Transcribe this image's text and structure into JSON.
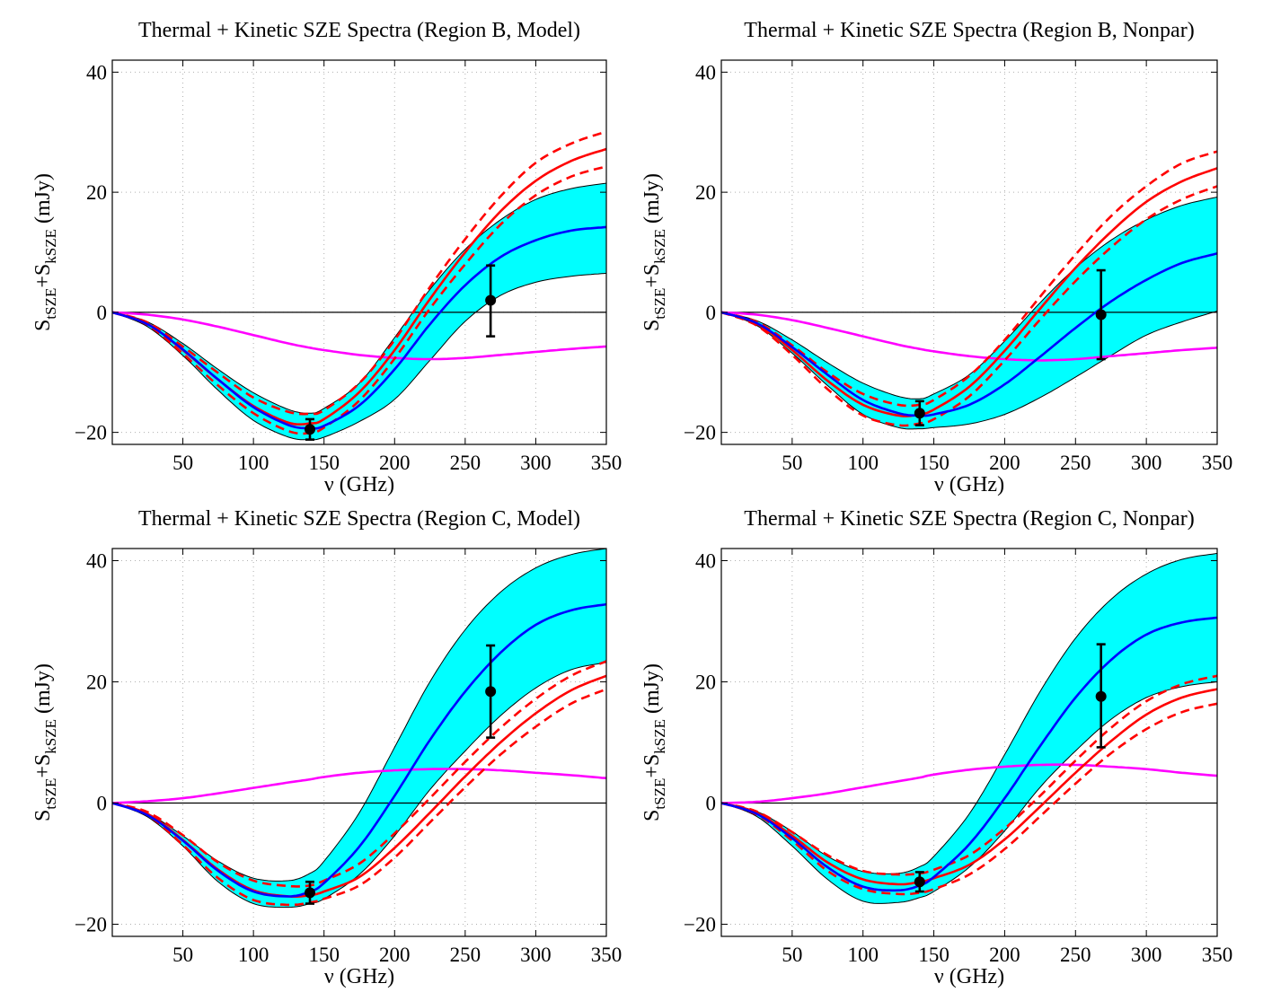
{
  "chart_data": [
    {
      "type": "line",
      "title": "Thermal + Kinetic SZE Spectra (Region B, Model)",
      "xlabel": "ν (GHz)",
      "ylabel": {
        "main": "S",
        "sub1": "tSZE",
        "plus": "+S",
        "sub2": "kSZE",
        "unit": " (mJy)"
      },
      "xlim": [
        0,
        350
      ],
      "ylim": [
        -22,
        42
      ],
      "xticks": [
        50,
        100,
        150,
        200,
        250,
        300,
        350
      ],
      "yticks": [
        -20,
        0,
        20,
        40
      ],
      "grid": true,
      "colors": {
        "band": "#00ffff",
        "total": "#0000ff",
        "thermal": "#ff0000",
        "kinetic": "#ff00ff",
        "points": "#000000"
      },
      "x": [
        0,
        25,
        50,
        75,
        100,
        125,
        140,
        150,
        175,
        200,
        225,
        250,
        275,
        300,
        325,
        350
      ],
      "series": [
        {
          "role": "total",
          "values": [
            0,
            -2.0,
            -6.2,
            -11.2,
            -15.8,
            -18.8,
            -19.3,
            -18.9,
            -15.5,
            -9.5,
            -2.0,
            4.5,
            9.2,
            12.0,
            13.6,
            14.2
          ]
        },
        {
          "role": "band_upper",
          "values": [
            0,
            -1.6,
            -5.2,
            -9.5,
            -13.4,
            -16.2,
            -16.8,
            -16.0,
            -11.8,
            -4.2,
            3.8,
            10.5,
            15.4,
            18.8,
            20.6,
            21.5
          ]
        },
        {
          "role": "band_lower",
          "values": [
            0,
            -2.4,
            -7.2,
            -13.0,
            -18.0,
            -20.8,
            -21.2,
            -20.8,
            -18.2,
            -14.5,
            -8.0,
            -1.5,
            2.8,
            5.0,
            6.0,
            6.5
          ]
        },
        {
          "role": "thermal",
          "values": [
            0,
            -1.9,
            -6.3,
            -11.2,
            -15.6,
            -18.4,
            -18.5,
            -17.8,
            -13.3,
            -6.3,
            2.2,
            10.0,
            16.8,
            21.9,
            25.2,
            27.2
          ]
        },
        {
          "role": "thermal_upper",
          "values": [
            0,
            -1.7,
            -5.7,
            -10.1,
            -14.2,
            -16.6,
            -16.9,
            -16.3,
            -11.8,
            -4.6,
            4.2,
            12.2,
            19.3,
            24.9,
            28.1,
            30.1
          ]
        },
        {
          "role": "thermal_lower",
          "values": [
            0,
            -2.1,
            -6.9,
            -12.2,
            -16.8,
            -19.8,
            -20.1,
            -19.2,
            -14.7,
            -7.7,
            0.6,
            8.0,
            14.6,
            19.5,
            22.6,
            24.3
          ]
        },
        {
          "role": "kinetic",
          "values": [
            0,
            -0.4,
            -1.2,
            -2.4,
            -3.8,
            -5.2,
            -5.9,
            -6.3,
            -7.1,
            -7.6,
            -7.8,
            -7.6,
            -7.1,
            -6.6,
            -6.1,
            -5.7
          ]
        }
      ],
      "points": [
        {
          "x": 140,
          "y": -19.5,
          "lo": -21.2,
          "hi": -17.8
        },
        {
          "x": 268,
          "y": 2.0,
          "lo": -4.0,
          "hi": 7.8
        }
      ]
    },
    {
      "type": "line",
      "title": "Thermal + Kinetic SZE Spectra (Region B, Nonpar)",
      "xlabel": "ν (GHz)",
      "ylabel": {
        "main": "S",
        "sub1": "tSZE",
        "plus": "+S",
        "sub2": "kSZE",
        "unit": " (mJy)"
      },
      "xlim": [
        0,
        350
      ],
      "ylim": [
        -22,
        42
      ],
      "xticks": [
        50,
        100,
        150,
        200,
        250,
        300,
        350
      ],
      "yticks": [
        -20,
        0,
        20,
        40
      ],
      "grid": true,
      "colors": {
        "band": "#00ffff",
        "total": "#0000ff",
        "thermal": "#ff0000",
        "kinetic": "#ff00ff",
        "points": "#000000"
      },
      "x": [
        0,
        25,
        50,
        75,
        100,
        125,
        140,
        150,
        175,
        200,
        225,
        250,
        275,
        300,
        325,
        350
      ],
      "series": [
        {
          "role": "total",
          "values": [
            0,
            -1.8,
            -5.8,
            -10.4,
            -14.6,
            -16.8,
            -17.2,
            -17.0,
            -15.4,
            -12.0,
            -7.4,
            -2.6,
            1.8,
            5.4,
            8.2,
            9.8
          ]
        },
        {
          "role": "band_upper",
          "values": [
            0,
            -1.4,
            -4.6,
            -8.4,
            -11.8,
            -14.0,
            -14.4,
            -13.6,
            -10.4,
            -4.8,
            1.6,
            7.4,
            12.0,
            15.4,
            17.8,
            19.2
          ]
        },
        {
          "role": "band_lower",
          "values": [
            0,
            -2.2,
            -6.8,
            -12.2,
            -17.0,
            -19.2,
            -19.4,
            -19.2,
            -18.6,
            -17.0,
            -14.2,
            -10.8,
            -7.2,
            -3.8,
            -1.6,
            0.2
          ]
        },
        {
          "role": "thermal",
          "values": [
            0,
            -1.9,
            -6.3,
            -11.4,
            -15.4,
            -17.2,
            -17.0,
            -16.2,
            -12.4,
            -6.4,
            0.6,
            7.4,
            13.4,
            18.4,
            21.8,
            24.0
          ]
        },
        {
          "role": "thermal_upper",
          "values": [
            0,
            -1.6,
            -5.5,
            -10.0,
            -13.6,
            -15.4,
            -15.4,
            -14.6,
            -10.6,
            -4.6,
            2.6,
            9.6,
            16.0,
            21.0,
            24.8,
            26.8
          ]
        },
        {
          "role": "thermal_lower",
          "values": [
            0,
            -2.2,
            -7.1,
            -12.8,
            -17.2,
            -18.8,
            -18.5,
            -17.8,
            -14.0,
            -8.0,
            -1.2,
            5.2,
            10.8,
            15.5,
            18.8,
            21.0
          ]
        },
        {
          "role": "kinetic",
          "values": [
            0,
            -0.4,
            -1.3,
            -2.6,
            -4.0,
            -5.4,
            -6.1,
            -6.5,
            -7.3,
            -7.8,
            -8.0,
            -7.8,
            -7.3,
            -6.8,
            -6.3,
            -5.9
          ]
        }
      ],
      "points": [
        {
          "x": 140,
          "y": -16.8,
          "lo": -18.8,
          "hi": -14.8
        },
        {
          "x": 268,
          "y": -0.4,
          "lo": -7.8,
          "hi": 7.0
        }
      ]
    },
    {
      "type": "line",
      "title": "Thermal + Kinetic SZE Spectra (Region C, Model)",
      "xlabel": "ν (GHz)",
      "ylabel": {
        "main": "S",
        "sub1": "tSZE",
        "plus": "+S",
        "sub2": "kSZE",
        "unit": " (mJy)"
      },
      "xlim": [
        0,
        350
      ],
      "ylim": [
        -22,
        42
      ],
      "xticks": [
        50,
        100,
        150,
        200,
        250,
        300,
        350
      ],
      "yticks": [
        -20,
        0,
        20,
        40
      ],
      "grid": true,
      "colors": {
        "band": "#00ffff",
        "total": "#0000ff",
        "thermal": "#ff0000",
        "kinetic": "#ff00ff",
        "points": "#000000"
      },
      "x": [
        0,
        25,
        50,
        75,
        100,
        125,
        140,
        150,
        175,
        200,
        225,
        250,
        275,
        300,
        325,
        350
      ],
      "series": [
        {
          "role": "total",
          "values": [
            0,
            -2.0,
            -6.2,
            -11.2,
            -14.6,
            -15.4,
            -14.6,
            -13.2,
            -7.2,
            1.2,
            10.4,
            18.4,
            24.8,
            29.4,
            31.8,
            32.8
          ]
        },
        {
          "role": "band_upper",
          "values": [
            0,
            -1.7,
            -5.4,
            -9.6,
            -12.4,
            -12.8,
            -11.6,
            -9.6,
            -1.6,
            9.2,
            20.0,
            28.6,
            34.8,
            38.8,
            41.0,
            42.0
          ]
        },
        {
          "role": "band_lower",
          "values": [
            0,
            -2.3,
            -7.1,
            -13.0,
            -16.6,
            -17.2,
            -16.6,
            -15.8,
            -11.8,
            -5.4,
            2.2,
            8.6,
            14.4,
            19.0,
            22.0,
            23.2
          ]
        },
        {
          "role": "thermal",
          "values": [
            0,
            -1.8,
            -6.1,
            -11.0,
            -14.4,
            -15.4,
            -15.2,
            -14.6,
            -12.2,
            -7.4,
            -1.6,
            4.4,
            10.0,
            14.8,
            18.6,
            21.0
          ]
        },
        {
          "role": "thermal_upper",
          "values": [
            0,
            -1.5,
            -5.3,
            -9.8,
            -12.8,
            -13.7,
            -13.6,
            -12.8,
            -10.0,
            -5.0,
            0.8,
            6.8,
            12.4,
            17.2,
            21.0,
            23.4
          ]
        },
        {
          "role": "thermal_lower",
          "values": [
            0,
            -2.0,
            -6.9,
            -12.4,
            -16.0,
            -16.8,
            -16.4,
            -15.8,
            -13.6,
            -9.0,
            -3.2,
            2.6,
            8.0,
            12.6,
            16.4,
            18.8
          ]
        },
        {
          "role": "kinetic",
          "values": [
            0,
            0.3,
            0.8,
            1.6,
            2.5,
            3.4,
            3.9,
            4.3,
            5.0,
            5.4,
            5.6,
            5.6,
            5.4,
            5.0,
            4.6,
            4.1
          ]
        }
      ],
      "points": [
        {
          "x": 140,
          "y": -14.8,
          "lo": -16.6,
          "hi": -13.0
        },
        {
          "x": 268,
          "y": 18.4,
          "lo": 10.8,
          "hi": 26.0
        }
      ]
    },
    {
      "type": "line",
      "title": "Thermal + Kinetic SZE Spectra (Region C, Nonpar)",
      "xlabel": "ν (GHz)",
      "ylabel": {
        "main": "S",
        "sub1": "tSZE",
        "plus": "+S",
        "sub2": "kSZE",
        "unit": " (mJy)"
      },
      "xlim": [
        0,
        350
      ],
      "ylim": [
        -22,
        42
      ],
      "xticks": [
        50,
        100,
        150,
        200,
        250,
        300,
        350
      ],
      "yticks": [
        -20,
        0,
        20,
        40
      ],
      "grid": true,
      "colors": {
        "band": "#00ffff",
        "total": "#0000ff",
        "thermal": "#ff0000",
        "kinetic": "#ff00ff",
        "points": "#000000"
      },
      "x": [
        0,
        25,
        50,
        75,
        100,
        125,
        140,
        150,
        175,
        200,
        225,
        250,
        275,
        300,
        325,
        350
      ],
      "series": [
        {
          "role": "total",
          "values": [
            0,
            -1.8,
            -5.8,
            -10.6,
            -13.8,
            -14.4,
            -13.6,
            -12.2,
            -6.8,
            0.8,
            9.4,
            17.4,
            23.6,
            27.8,
            29.8,
            30.6
          ]
        },
        {
          "role": "band_upper",
          "values": [
            0,
            -1.4,
            -4.7,
            -8.8,
            -11.3,
            -11.6,
            -10.5,
            -8.8,
            -1.8,
            8.0,
            18.4,
            27.2,
            33.6,
            37.8,
            40.2,
            41.2
          ]
        },
        {
          "role": "band_lower",
          "values": [
            0,
            -2.2,
            -7.1,
            -12.6,
            -16.2,
            -16.4,
            -15.6,
            -14.6,
            -10.6,
            -4.6,
            2.6,
            8.6,
            13.8,
            17.4,
            19.2,
            20.0
          ]
        },
        {
          "role": "thermal",
          "values": [
            0,
            -1.6,
            -5.4,
            -9.8,
            -12.6,
            -13.4,
            -13.0,
            -12.4,
            -10.2,
            -6.0,
            -0.6,
            5.0,
            10.2,
            14.6,
            17.4,
            18.8
          ]
        },
        {
          "role": "thermal_upper",
          "values": [
            0,
            -1.4,
            -4.8,
            -8.6,
            -11.2,
            -11.8,
            -11.6,
            -11.0,
            -8.6,
            -4.2,
            1.2,
            7.0,
            12.4,
            16.8,
            19.6,
            21.0
          ]
        },
        {
          "role": "thermal_lower",
          "values": [
            0,
            -1.9,
            -6.2,
            -11.2,
            -14.2,
            -15.0,
            -14.8,
            -14.2,
            -11.8,
            -7.6,
            -2.2,
            3.2,
            8.2,
            12.2,
            15.0,
            16.4
          ]
        },
        {
          "role": "kinetic",
          "values": [
            0,
            0.2,
            0.8,
            1.6,
            2.6,
            3.6,
            4.2,
            4.7,
            5.5,
            6.0,
            6.3,
            6.3,
            6.0,
            5.6,
            5.0,
            4.5
          ]
        }
      ],
      "points": [
        {
          "x": 140,
          "y": -13.0,
          "lo": -14.6,
          "hi": -11.4
        },
        {
          "x": 268,
          "y": 17.6,
          "lo": 9.2,
          "hi": 26.2
        }
      ]
    }
  ]
}
